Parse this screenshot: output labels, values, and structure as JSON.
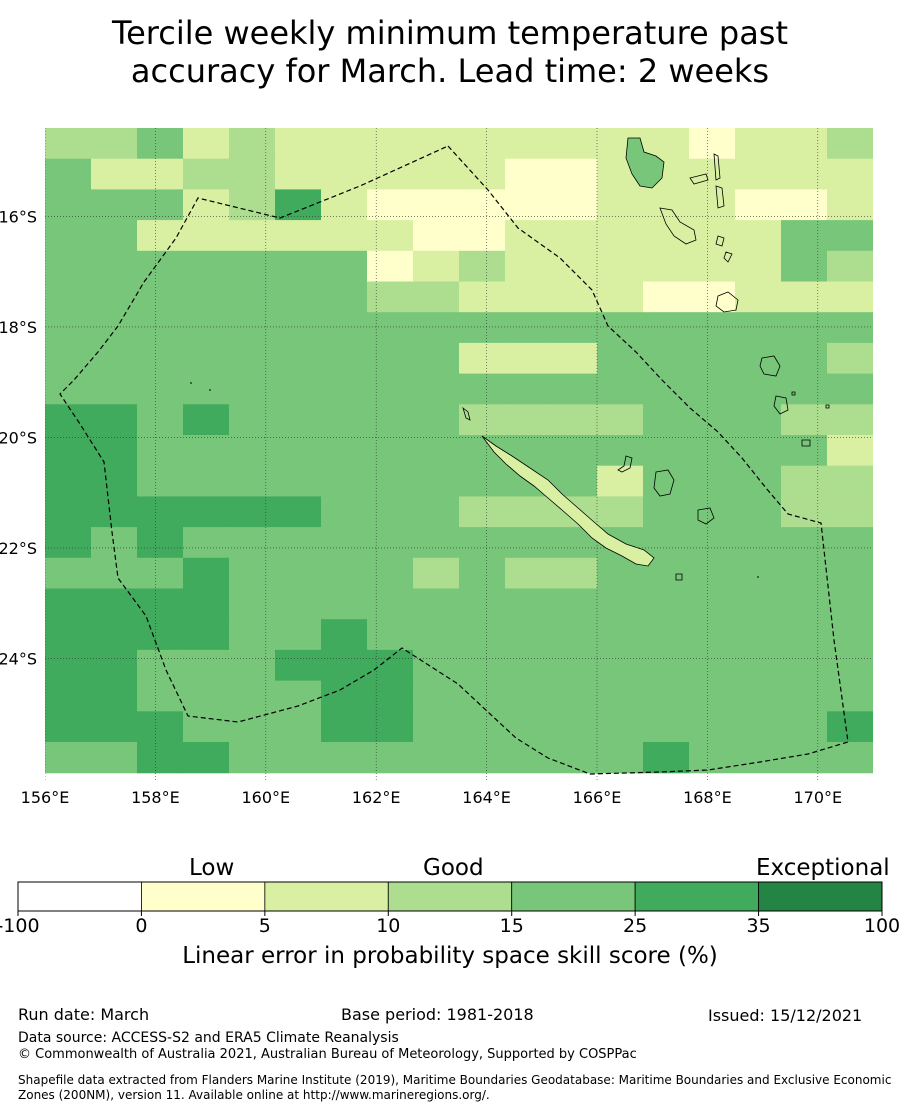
{
  "title": {
    "line1": "Tercile weekly minimum temperature past",
    "line2": "accuracy for March. Lead time: 2 weeks"
  },
  "map": {
    "lon_ticks": [
      "156°E",
      "158°E",
      "160°E",
      "162°E",
      "164°E",
      "166°E",
      "168°E",
      "170°E"
    ],
    "lat_ticks": [
      "16°S",
      "18°S",
      "20°S",
      "22°S",
      "24°S"
    ],
    "lon_range": [
      156,
      171
    ],
    "lat_range": [
      -26.2,
      -14.4
    ],
    "grid": true,
    "grid_style": "dotted",
    "features": [
      "New Caledonia",
      "Vanuatu",
      "Loyalty Islands"
    ],
    "boundary": "EEZ dashed outline"
  },
  "legend": {
    "categories": [
      "Low",
      "Good",
      "Exceptional"
    ],
    "tick_labels": [
      "-100",
      "0",
      "5",
      "10",
      "15",
      "25",
      "35",
      "100"
    ],
    "colors": [
      "#ffffff",
      "#ffffcc",
      "#d9f0a3",
      "#addd8e",
      "#78c679",
      "#41ab5d",
      "#238443"
    ],
    "title": "Linear error in probability space skill score (%)"
  },
  "footer": {
    "run_date": "Run date: March",
    "base_period": "Base period: 1981-2018",
    "issued": "Issued: 15/12/2021",
    "data_source": "Data source: ACCESS-S2 and ERA5 Climate Reanalysis",
    "copyright": "© Commonwealth of Australia 2021, Australian Bureau of Meteorology, Supported by COSPPac",
    "shapefile_line1": "Shapefile data extracted from Flanders Marine Institute (2019), Maritime Boundaries Geodatabase: Maritime Boundaries and Exclusive Economic",
    "shapefile_line2": "Zones (200NM), version 11. Available online at http://www.marineregions.org/."
  }
}
